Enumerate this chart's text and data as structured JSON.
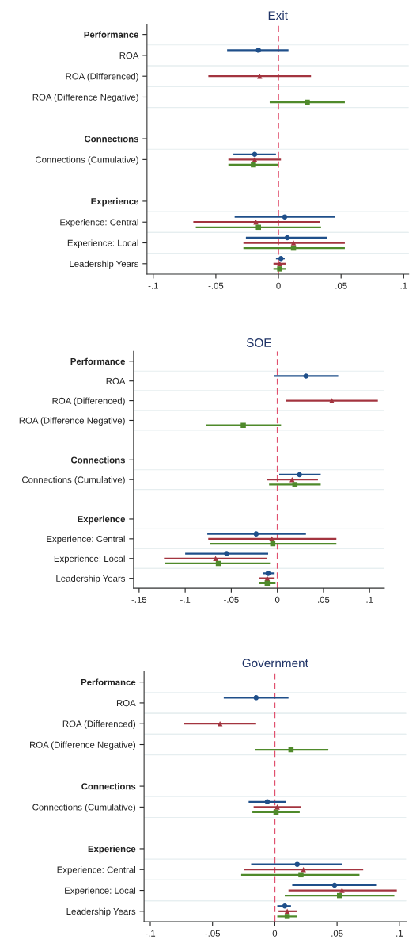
{
  "chart_data": [
    {
      "type": "scatter",
      "title": "Exit",
      "orientation": "horizontal",
      "grid": "y",
      "categories": [
        "Performance",
        "ROA",
        "ROA (Differenced)",
        "ROA (Difference Negative)",
        null,
        "Connections",
        "Connections (Cumulative)",
        null,
        "Experience",
        "Experience: Central",
        "Experience: Local",
        "Leadership Years"
      ],
      "xlim": [
        -0.105,
        0.104
      ],
      "xticks": [
        {
          "value": -0.1,
          "label": "-.1"
        },
        {
          "value": -0.05,
          "label": "-.05"
        },
        0,
        {
          "value": 0.05,
          "label": ".05"
        },
        {
          "value": 0.1,
          "label": ".1"
        }
      ],
      "ref_lines": [
        {
          "axis": "x",
          "value": 0,
          "color": "#e0506e",
          "line_style": "dashed"
        }
      ],
      "series": [
        {
          "color": "#1f4f8a",
          "marker": "circle",
          "values": [
            null,
            -0.016,
            null,
            null,
            null,
            null,
            -0.019,
            null,
            null,
            0.005,
            0.007,
            0.002
          ],
          "errors": [
            null,
            [
              -0.041,
              0.008
            ],
            null,
            null,
            null,
            null,
            [
              -0.036,
              -0.002
            ],
            null,
            null,
            [
              -0.035,
              0.045
            ],
            [
              -0.026,
              0.039
            ],
            [
              -0.002,
              0.005
            ]
          ]
        },
        {
          "color": "#a3343f",
          "marker": "triangle",
          "values": [
            null,
            null,
            -0.015,
            null,
            null,
            null,
            -0.019,
            null,
            null,
            -0.018,
            0.012,
            0.001
          ],
          "errors": [
            null,
            null,
            [
              -0.056,
              0.026
            ],
            null,
            null,
            null,
            [
              -0.04,
              0.002
            ],
            null,
            null,
            [
              -0.068,
              0.033
            ],
            [
              -0.028,
              0.053
            ],
            [
              -0.004,
              0.006
            ]
          ]
        },
        {
          "color": "#4f8a2b",
          "marker": "square",
          "values": [
            null,
            null,
            null,
            0.023,
            null,
            null,
            -0.02,
            null,
            null,
            -0.016,
            0.012,
            0.001
          ],
          "errors": [
            null,
            null,
            null,
            [
              -0.007,
              0.053
            ],
            null,
            null,
            [
              -0.04,
              0.0
            ],
            null,
            null,
            [
              -0.066,
              0.034
            ],
            [
              -0.028,
              0.053
            ],
            [
              -0.004,
              0.006
            ]
          ]
        }
      ]
    },
    {
      "type": "scatter",
      "title": "SOE",
      "orientation": "horizontal",
      "grid": "y",
      "categories": [
        "Performance",
        "ROA",
        "ROA (Differenced)",
        "ROA (Difference Negative)",
        null,
        "Connections",
        "Connections (Cumulative)",
        null,
        "Experience",
        "Experience: Central",
        "Experience: Local",
        "Leadership Years"
      ],
      "xlim": [
        -0.156,
        0.116
      ],
      "xticks": [
        {
          "value": -0.15,
          "label": "-.15"
        },
        {
          "value": -0.1,
          "label": "-.1"
        },
        {
          "value": -0.05,
          "label": "-.05"
        },
        0,
        {
          "value": 0.05,
          "label": ".05"
        },
        {
          "value": 0.1,
          "label": ".1"
        }
      ],
      "ref_lines": [
        {
          "axis": "x",
          "value": 0,
          "color": "#e0506e",
          "line_style": "dashed"
        }
      ],
      "series": [
        {
          "color": "#1f4f8a",
          "marker": "circle",
          "values": [
            null,
            0.031,
            null,
            null,
            null,
            null,
            0.024,
            null,
            null,
            -0.023,
            -0.055,
            -0.01
          ],
          "errors": [
            null,
            [
              -0.004,
              0.066
            ],
            null,
            null,
            null,
            null,
            [
              0.002,
              0.047
            ],
            null,
            null,
            [
              -0.076,
              0.031
            ],
            [
              -0.1,
              -0.01
            ],
            [
              -0.016,
              -0.003
            ]
          ]
        },
        {
          "color": "#a3343f",
          "marker": "triangle",
          "values": [
            null,
            null,
            0.059,
            null,
            null,
            null,
            0.016,
            null,
            null,
            -0.006,
            -0.067,
            -0.011
          ],
          "errors": [
            null,
            null,
            [
              0.009,
              0.109
            ],
            null,
            null,
            null,
            [
              -0.011,
              0.044
            ],
            null,
            null,
            [
              -0.075,
              0.064
            ],
            [
              -0.123,
              -0.011
            ],
            [
              -0.02,
              -0.003
            ]
          ]
        },
        {
          "color": "#4f8a2b",
          "marker": "square",
          "values": [
            null,
            null,
            null,
            -0.037,
            null,
            null,
            0.019,
            null,
            null,
            -0.005,
            -0.064,
            -0.011
          ],
          "errors": [
            null,
            null,
            null,
            [
              -0.077,
              0.004
            ],
            null,
            null,
            [
              -0.009,
              0.047
            ],
            null,
            null,
            [
              -0.073,
              0.064
            ],
            [
              -0.122,
              -0.008
            ],
            [
              -0.02,
              -0.002
            ]
          ]
        }
      ]
    },
    {
      "type": "scatter",
      "title": "Government",
      "orientation": "horizontal",
      "grid": "y",
      "categories": [
        "Performance",
        "ROA",
        "ROA (Differenced)",
        "ROA (Difference Negative)",
        null,
        "Connections",
        "Connections (Cumulative)",
        null,
        "Experience",
        "Experience: Central",
        "Experience: Local",
        "Leadership Years"
      ],
      "xlim": [
        -0.105,
        0.1055
      ],
      "xticks": [
        {
          "value": -0.1,
          "label": "-.1"
        },
        {
          "value": -0.05,
          "label": "-.05"
        },
        0,
        {
          "value": 0.05,
          "label": ".05"
        },
        {
          "value": 0.1,
          "label": ".1"
        }
      ],
      "ref_lines": [
        {
          "axis": "x",
          "value": 0,
          "color": "#e0506e",
          "line_style": "dashed"
        }
      ],
      "series": [
        {
          "color": "#1f4f8a",
          "marker": "circle",
          "values": [
            null,
            -0.015,
            null,
            null,
            null,
            null,
            -0.006,
            null,
            null,
            0.018,
            0.048,
            0.008
          ],
          "errors": [
            null,
            [
              -0.041,
              0.011
            ],
            null,
            null,
            null,
            null,
            [
              -0.021,
              0.009
            ],
            null,
            null,
            [
              -0.019,
              0.054
            ],
            [
              0.014,
              0.082
            ],
            [
              0.002,
              0.013
            ]
          ]
        },
        {
          "color": "#a3343f",
          "marker": "triangle",
          "values": [
            null,
            null,
            -0.044,
            null,
            null,
            null,
            0.002,
            null,
            null,
            0.023,
            0.054,
            0.01
          ],
          "errors": [
            null,
            null,
            [
              -0.073,
              -0.015
            ],
            null,
            null,
            null,
            [
              -0.017,
              0.021
            ],
            null,
            null,
            [
              -0.025,
              0.071
            ],
            [
              0.011,
              0.098
            ],
            [
              0.003,
              0.018
            ]
          ]
        },
        {
          "color": "#4f8a2b",
          "marker": "square",
          "values": [
            null,
            null,
            null,
            0.013,
            null,
            null,
            0.001,
            null,
            null,
            0.021,
            0.052,
            0.01
          ],
          "errors": [
            null,
            null,
            null,
            [
              -0.016,
              0.043
            ],
            null,
            null,
            [
              -0.018,
              0.02
            ],
            null,
            null,
            [
              -0.027,
              0.068
            ],
            [
              0.008,
              0.096
            ],
            [
              0.002,
              0.018
            ]
          ]
        }
      ]
    }
  ]
}
